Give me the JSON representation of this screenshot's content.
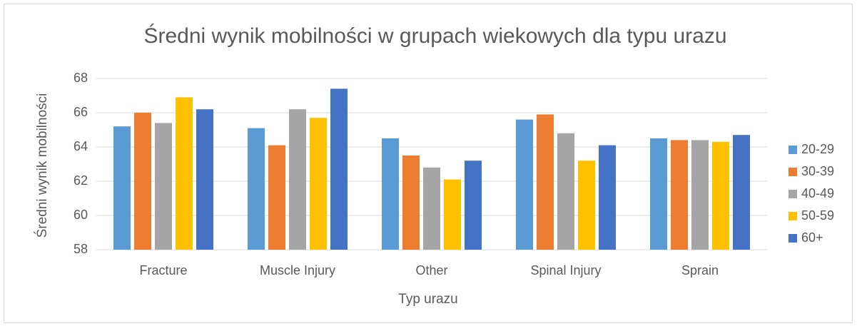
{
  "chart_data": {
    "type": "bar",
    "title": "Średni wynik mobilności w grupach wiekowych dla typu urazu",
    "x_label": "Typ urazu",
    "y_label": "Średni wynik mobilności",
    "categories": [
      "Fracture",
      "Muscle Injury",
      "Other",
      "Spinal Injury",
      "Sprain"
    ],
    "series": [
      {
        "name": "20-29",
        "color": "#5b9bd5",
        "values": [
          65.2,
          65.1,
          64.5,
          65.6,
          64.5
        ]
      },
      {
        "name": "30-39",
        "color": "#ed7d31",
        "values": [
          66.0,
          64.1,
          63.5,
          65.9,
          64.4
        ]
      },
      {
        "name": "40-49",
        "color": "#a5a5a5",
        "values": [
          65.4,
          66.2,
          62.8,
          64.8,
          64.4
        ]
      },
      {
        "name": "50-59",
        "color": "#ffc000",
        "values": [
          66.9,
          65.7,
          62.1,
          63.2,
          64.3
        ]
      },
      {
        "name": "60+",
        "color": "#4472c4",
        "values": [
          66.2,
          67.4,
          63.2,
          64.1,
          64.7
        ]
      }
    ],
    "ylim": [
      58,
      68
    ],
    "yticks": [
      58,
      60,
      62,
      64,
      66,
      68
    ],
    "grid": true,
    "legend": "right"
  }
}
